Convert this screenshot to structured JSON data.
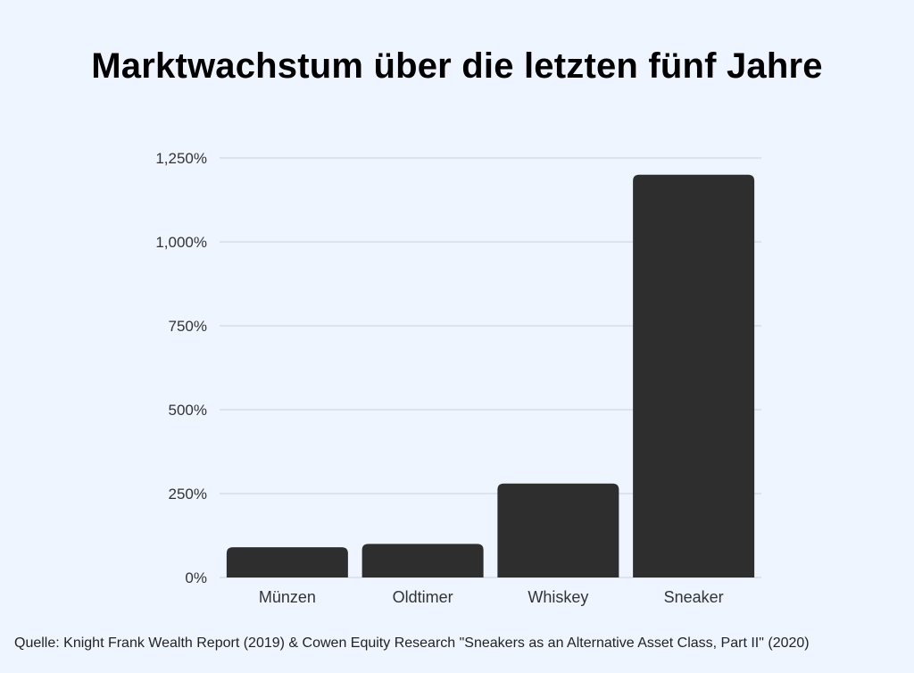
{
  "chart_data": {
    "type": "bar",
    "title": "Marktwachstum über die letzten fünf Jahre",
    "xlabel": "",
    "ylabel": "",
    "categories": [
      "Münzen",
      "Oldtimer",
      "Whiskey",
      "Sneaker"
    ],
    "values": [
      90,
      100,
      280,
      1200
    ],
    "ylim": [
      0,
      1250
    ],
    "yticks": [
      0,
      250,
      500,
      750,
      1000,
      1250
    ],
    "ytick_labels": [
      "0%",
      "250%",
      "500%",
      "750%",
      "1,000%",
      "1,250%"
    ],
    "grid": true,
    "bar_color": "#2e2e2e",
    "grid_color": "#c9d1dc"
  },
  "source": "Quelle: Knight Frank Wealth Report (2019) & Cowen Equity Research \"Sneakers as an Alternative Asset Class, Part II\" (2020)"
}
